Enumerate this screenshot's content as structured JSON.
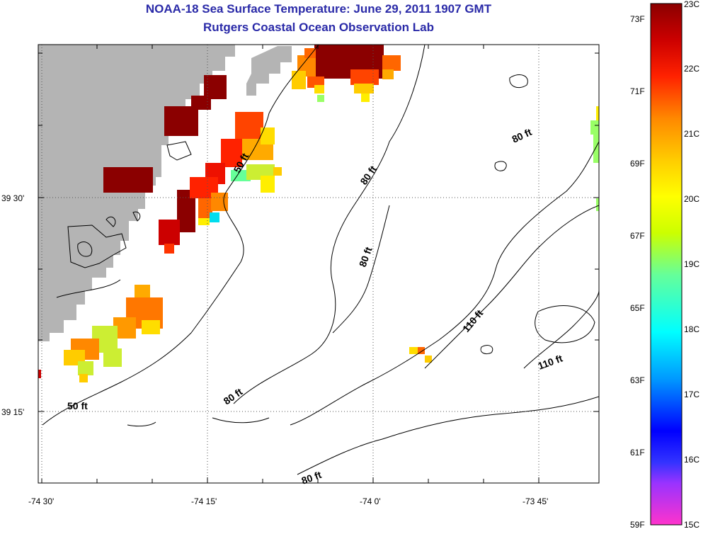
{
  "title_line1": "NOAA-18 Sea Surface Temperature:  June 29, 2011 1907 GMT",
  "title_line2": "Rutgers Coastal Ocean Observation Lab",
  "map": {
    "latitude_labels": [
      "39 30'",
      "39 15'"
    ],
    "longitude_labels": [
      "-74 30'",
      "-74 15'",
      "-74 0'",
      "-73 45'"
    ],
    "contour_labels": [
      "50 ft",
      "50 ft",
      "80 ft",
      "80 ft",
      "80 ft",
      "80 ft",
      "80 ft",
      "110 ft",
      "110 ft"
    ],
    "colors": {
      "land": "#b4b4b4",
      "ocean": "#ffffff",
      "contour": "#000000",
      "grid": "#555555"
    }
  },
  "colorbar": {
    "fahrenheit_labels": [
      "73F",
      "71F",
      "69F",
      "67F",
      "65F",
      "63F",
      "61F",
      "59F"
    ],
    "celsius_labels": [
      "23C",
      "22C",
      "21C",
      "20C",
      "19C",
      "18C",
      "17C",
      "16C",
      "15C"
    ],
    "celsius_range": [
      15,
      23
    ],
    "gradient_stops": [
      "#ff33cc",
      "#9933ff",
      "#0000ff",
      "#0099ff",
      "#00ffff",
      "#66ff99",
      "#ccff00",
      "#ffff00",
      "#ffcc00",
      "#ff8800",
      "#ff2200",
      "#cc0000",
      "#8b0000"
    ]
  }
}
